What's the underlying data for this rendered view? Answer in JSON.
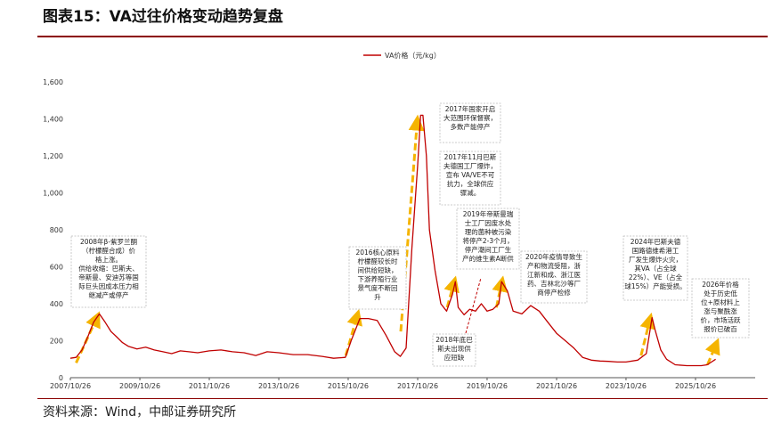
{
  "header": {
    "title": "图表15：VA过往价格变动趋势复盘"
  },
  "footer": {
    "source": "资料来源：Wind，中邮证券研究所"
  },
  "colors": {
    "line": "#c00000",
    "arrow": "#f5b400",
    "rule": "#8b0000",
    "box_border": "#bbbbbb"
  },
  "chart_data": {
    "type": "line",
    "title": "",
    "xlabel": "",
    "ylabel": "",
    "ylim": [
      0,
      1600
    ],
    "yticks": [
      0,
      200,
      400,
      600,
      800,
      1000,
      1200,
      1400,
      1600
    ],
    "ytick_labels": [
      "0",
      "200",
      "400",
      "600",
      "800",
      "1,000",
      "1,200",
      "1,400",
      "1,600"
    ],
    "xlim": [
      "2007-10-26",
      "2026-10-26"
    ],
    "xtick_labels": [
      "2007/10/26",
      "2009/10/26",
      "2011/10/26",
      "2013/10/26",
      "2015/10/26",
      "2017/10/26",
      "2019/10/26",
      "2021/10/26",
      "2023/10/26",
      "2025/10/26"
    ],
    "xtick_dates": [
      "2007-10-26",
      "2009-10-26",
      "2011-10-26",
      "2013-10-26",
      "2015-10-26",
      "2017-10-26",
      "2019-10-26",
      "2021-10-26",
      "2023-10-26",
      "2025-10-26"
    ],
    "grid": false,
    "legend_position": "top-center",
    "series": [
      {
        "name": "VA价格（元/kg）",
        "points": [
          [
            "2007-10-26",
            105
          ],
          [
            "2007-12-26",
            110
          ],
          [
            "2008-02-26",
            150
          ],
          [
            "2008-04-26",
            220
          ],
          [
            "2008-06-26",
            300
          ],
          [
            "2008-08-26",
            345
          ],
          [
            "2008-10-26",
            300
          ],
          [
            "2008-12-26",
            250
          ],
          [
            "2009-02-26",
            220
          ],
          [
            "2009-04-26",
            190
          ],
          [
            "2009-06-26",
            170
          ],
          [
            "2009-09-26",
            155
          ],
          [
            "2009-12-26",
            165
          ],
          [
            "2010-03-26",
            150
          ],
          [
            "2010-06-26",
            140
          ],
          [
            "2010-09-26",
            130
          ],
          [
            "2010-12-26",
            145
          ],
          [
            "2011-03-26",
            140
          ],
          [
            "2011-06-26",
            135
          ],
          [
            "2011-10-26",
            145
          ],
          [
            "2012-02-26",
            150
          ],
          [
            "2012-06-26",
            140
          ],
          [
            "2012-10-26",
            135
          ],
          [
            "2013-02-26",
            120
          ],
          [
            "2013-06-26",
            140
          ],
          [
            "2013-10-26",
            135
          ],
          [
            "2014-03-26",
            125
          ],
          [
            "2014-08-26",
            125
          ],
          [
            "2015-01-26",
            115
          ],
          [
            "2015-05-26",
            105
          ],
          [
            "2015-09-26",
            110
          ],
          [
            "2015-11-26",
            200
          ],
          [
            "2016-02-26",
            320
          ],
          [
            "2016-05-26",
            320
          ],
          [
            "2016-08-26",
            310
          ],
          [
            "2016-11-26",
            230
          ],
          [
            "2017-02-26",
            140
          ],
          [
            "2017-04-26",
            115
          ],
          [
            "2017-06-26",
            160
          ],
          [
            "2017-08-26",
            700
          ],
          [
            "2017-10-26",
            1150
          ],
          [
            "2017-11-26",
            1420
          ],
          [
            "2017-12-20",
            1420
          ],
          [
            "2018-01-26",
            1200
          ],
          [
            "2018-02-26",
            800
          ],
          [
            "2018-04-26",
            580
          ],
          [
            "2018-06-26",
            400
          ],
          [
            "2018-08-26",
            360
          ],
          [
            "2018-10-26",
            450
          ],
          [
            "2018-11-26",
            520
          ],
          [
            "2018-12-26",
            380
          ],
          [
            "2019-02-26",
            340
          ],
          [
            "2019-04-26",
            370
          ],
          [
            "2019-06-26",
            360
          ],
          [
            "2019-08-26",
            400
          ],
          [
            "2019-10-26",
            360
          ],
          [
            "2019-12-26",
            370
          ],
          [
            "2020-02-26",
            400
          ],
          [
            "2020-03-26",
            520
          ],
          [
            "2020-05-26",
            470
          ],
          [
            "2020-07-26",
            360
          ],
          [
            "2020-10-26",
            345
          ],
          [
            "2021-01-26",
            390
          ],
          [
            "2021-04-26",
            360
          ],
          [
            "2021-07-26",
            300
          ],
          [
            "2021-10-26",
            240
          ],
          [
            "2022-01-26",
            200
          ],
          [
            "2022-04-26",
            160
          ],
          [
            "2022-07-26",
            110
          ],
          [
            "2022-10-26",
            95
          ],
          [
            "2023-01-26",
            90
          ],
          [
            "2023-04-26",
            88
          ],
          [
            "2023-07-26",
            85
          ],
          [
            "2023-10-26",
            85
          ],
          [
            "2024-02-26",
            95
          ],
          [
            "2024-05-26",
            130
          ],
          [
            "2024-07-26",
            325
          ],
          [
            "2024-08-26",
            260
          ],
          [
            "2024-10-26",
            150
          ],
          [
            "2024-12-26",
            100
          ],
          [
            "2025-03-26",
            70
          ],
          [
            "2025-07-26",
            65
          ],
          [
            "2025-12-26",
            65
          ],
          [
            "2026-02-26",
            70
          ],
          [
            "2026-05-26",
            100
          ]
        ]
      }
    ],
    "annotations": [
      {
        "lines": [
          "2008年β-紫罗兰酮",
          "（柠檬醛合成）价",
          "格上涨。",
          "供给收缩：巴斯夫、",
          "帝斯曼、安迪苏等国",
          "际巨头因成本压力相",
          "继减产或停产"
        ]
      },
      {
        "lines": [
          "2016核心原料",
          "柠檬醛较长时",
          "间供给短缺，",
          "下游养殖行业",
          "景气度不断回",
          "升"
        ]
      },
      {
        "lines": [
          "2017年国家开启",
          "大范围环保督察，",
          "多数产能停产"
        ]
      },
      {
        "lines": [
          "2017年11月巴斯",
          "夫德国工厂爆炸，",
          "宣布 VA/VE不可",
          "抗力，全球供应",
          "骤减。"
        ]
      },
      {
        "lines": [
          "2018年底巴",
          "斯夫出现供",
          "应短缺"
        ]
      },
      {
        "lines": [
          "2019年帝斯曼瑞",
          "士工厂因废水处",
          "理的菌种被污染",
          "将停产2-3个月，",
          "停产潮间工厂生",
          "产的维生素A断供"
        ]
      },
      {
        "lines": [
          "2020年疫情导致生",
          "产和物流受阻，浙",
          "江新和成、浙江医",
          "药、吉林北沙等厂",
          "商停产检修"
        ]
      },
      {
        "lines": [
          "2024年巴斯夫德",
          "国路德维希港工",
          "厂发生爆炸火灾，",
          "其VA（占全球",
          "22%）、VE（占全",
          "球15%）产能受损。"
        ]
      },
      {
        "lines": [
          "2026年价格",
          "处于历史低",
          "位+原材料上",
          "涨与聚酰涨",
          "价，市场活跃",
          "报价已破百"
        ]
      }
    ]
  }
}
